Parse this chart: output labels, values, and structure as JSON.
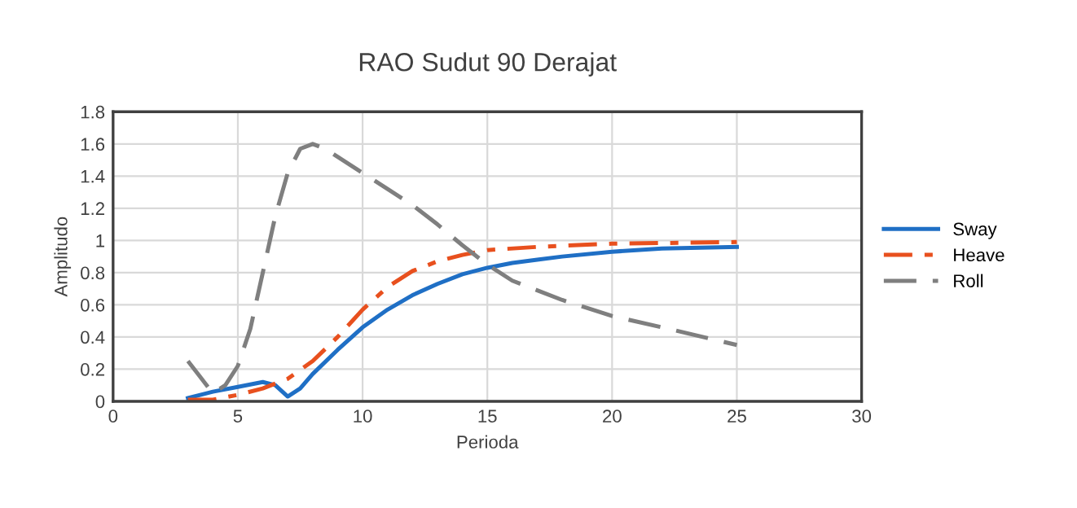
{
  "chart_data": {
    "type": "line",
    "title": "RAO Sudut 90 Derajat",
    "xlabel": "Perioda",
    "ylabel": "Amplitudo",
    "xlim": [
      0,
      30
    ],
    "xticks": [
      0,
      5,
      10,
      15,
      20,
      25,
      30
    ],
    "ylim": [
      0,
      1.8
    ],
    "yticks": [
      0,
      0.2,
      0.4,
      0.6,
      0.8,
      1,
      1.2,
      1.4,
      1.6,
      1.8
    ],
    "grid": true,
    "legend": "right",
    "series": [
      {
        "name": "Sway",
        "color": "#1f6fc5",
        "line_style": "solid",
        "x": [
          3,
          4,
          5,
          6,
          6.5,
          7,
          7.5,
          8,
          9,
          10,
          11,
          12,
          13,
          14,
          15,
          16,
          17,
          18,
          20,
          22,
          25
        ],
        "values": [
          0.02,
          0.06,
          0.09,
          0.12,
          0.1,
          0.03,
          0.08,
          0.17,
          0.32,
          0.46,
          0.57,
          0.66,
          0.73,
          0.79,
          0.83,
          0.86,
          0.88,
          0.9,
          0.93,
          0.95,
          0.96
        ]
      },
      {
        "name": "Heave",
        "color": "#e8501e",
        "line_style": "dashdot",
        "x": [
          3,
          4,
          5,
          6,
          7,
          8,
          9,
          10,
          11,
          12,
          13,
          14,
          15,
          17,
          20,
          25
        ],
        "values": [
          0.01,
          0.01,
          0.04,
          0.08,
          0.14,
          0.25,
          0.4,
          0.57,
          0.71,
          0.81,
          0.87,
          0.91,
          0.94,
          0.96,
          0.98,
          0.99
        ]
      },
      {
        "name": "Roll",
        "color": "#7f7f7f",
        "line_style": "dashed",
        "x": [
          3,
          3.5,
          4,
          4.5,
          5,
          5.5,
          6,
          6.5,
          7,
          7.5,
          8,
          8.5,
          9,
          10,
          11,
          12,
          13,
          14,
          15,
          16,
          18,
          20,
          22,
          25
        ],
        "values": [
          0.25,
          0.15,
          0.05,
          0.1,
          0.22,
          0.45,
          0.8,
          1.15,
          1.42,
          1.57,
          1.6,
          1.57,
          1.52,
          1.42,
          1.32,
          1.22,
          1.1,
          0.97,
          0.85,
          0.75,
          0.63,
          0.53,
          0.46,
          0.35
        ]
      }
    ]
  }
}
